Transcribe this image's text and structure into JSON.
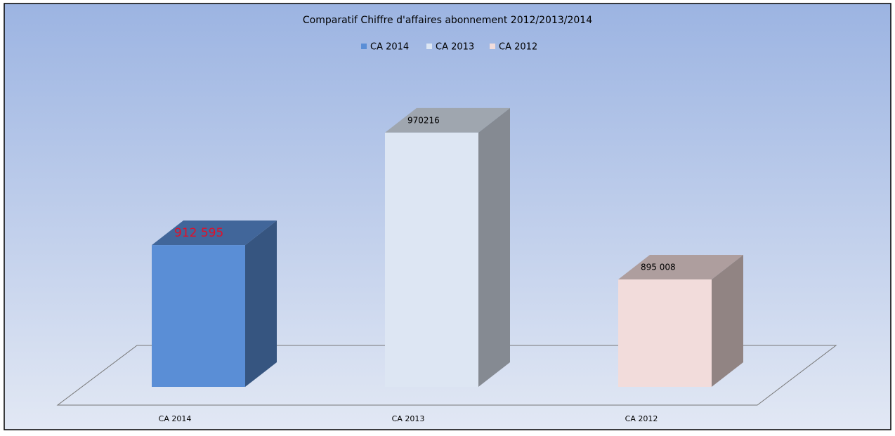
{
  "chart_data": {
    "type": "bar3d",
    "title": "Comparatif Chiffre d'affaires  abonnement 2012/2013/2014",
    "categories": [
      "CA 2014",
      "CA 2013",
      "CA 2012"
    ],
    "values": [
      912595,
      970216,
      895008
    ],
    "value_labels": [
      "912 595",
      "970216",
      "895 008"
    ],
    "colors": [
      "#5a8ed6",
      "#dde6f3",
      "#f2dcdb"
    ],
    "ylim": [
      840000,
      1000000
    ]
  }
}
